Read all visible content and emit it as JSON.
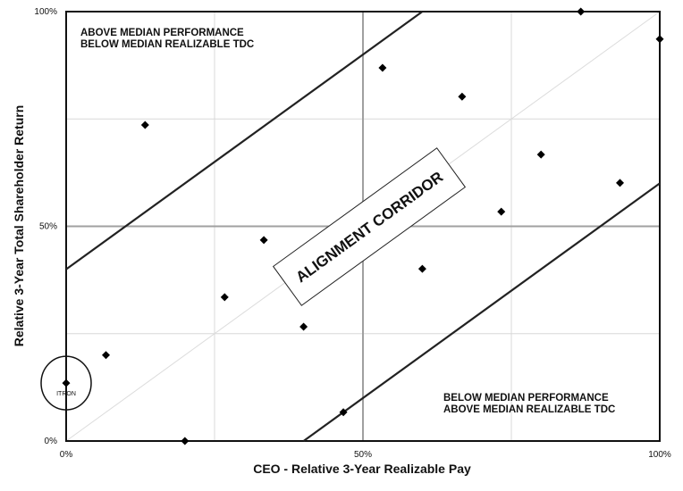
{
  "chart_data": {
    "type": "scatter",
    "x_label": "CEO - Relative 3-Year Realizable Pay",
    "y_label": "Relative 3-Year Total Shareholder Return",
    "x": [
      0,
      6.7,
      13.3,
      20,
      26.7,
      33.3,
      40,
      46.7,
      53.3,
      60,
      66.7,
      73.3,
      80,
      86.7,
      93.3,
      100
    ],
    "values": [
      13.5,
      20,
      73.6,
      0,
      33.5,
      46.8,
      26.6,
      6.7,
      86.9,
      40.1,
      80.2,
      53.4,
      66.7,
      100,
      60.1,
      93.6
    ],
    "color": "#000000",
    "xlim": [
      0,
      100
    ],
    "ylim": [
      0,
      100
    ],
    "xticks": [
      {
        "value": 0,
        "label": "0%"
      },
      {
        "value": 50,
        "label": "50%"
      },
      {
        "value": 100,
        "label": "100%"
      }
    ],
    "yticks": [
      {
        "value": 0,
        "label": "0%"
      },
      {
        "value": 50,
        "label": "50%"
      },
      {
        "value": 100,
        "label": "100%"
      }
    ],
    "minor_ticks": [
      25,
      75
    ],
    "grid": true,
    "diagonal": {
      "x": [
        0,
        100
      ],
      "y": [
        0,
        100
      ]
    },
    "corridor": [
      {
        "x": [
          0,
          60
        ],
        "y": [
          40,
          100
        ]
      },
      {
        "x": [
          40,
          100
        ],
        "y": [
          0,
          60
        ]
      }
    ],
    "annotations": {
      "top_left": [
        "ABOVE MEDIAN PERFORMANCE",
        "BELOW MEDIAN REALIZABLE TDC"
      ],
      "bottom_right": [
        "BELOW MEDIAN PERFORMANCE",
        "ABOVE MEDIAN REALIZABLE TDC"
      ],
      "corridor": "ALIGNMENT CORRIDOR",
      "highlight": "ITRON"
    }
  }
}
